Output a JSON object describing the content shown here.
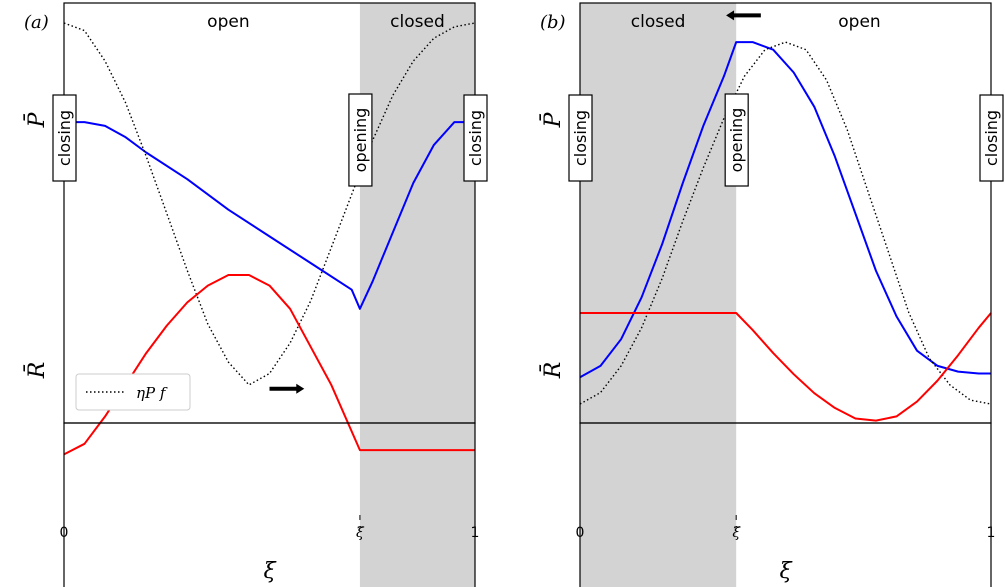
{
  "colors": {
    "pressure": "#0000ff",
    "reference": "#000000",
    "resistance": "#ff0000",
    "closed_shade": "#d3d3d3"
  },
  "chart_data": [
    {
      "type": "line",
      "panel_label": "(a)",
      "xlabel": "ξ",
      "xlim": [
        0,
        1
      ],
      "x_ticks": [
        {
          "value": 0,
          "label": "0"
        },
        {
          "value": 0.72,
          "label": "ξ̃"
        },
        {
          "value": 1,
          "label": "1"
        }
      ],
      "closed_interval": [
        0.72,
        1.0
      ],
      "region_labels": [
        {
          "text": "open",
          "x": 0.4
        },
        {
          "text": "closed",
          "x": 0.86
        }
      ],
      "event_labels": [
        {
          "text": "closing",
          "x": 0.0
        },
        {
          "text": "opening",
          "x": 0.72
        },
        {
          "text": "closing",
          "x": 1.0
        }
      ],
      "legend": {
        "label": "ηP f",
        "position": "lower-left"
      },
      "pressure_panel": {
        "ylabel": "P̄",
        "ylim": [
          0,
          1
        ],
        "series": [
          {
            "name": "P̄",
            "color": "#0000ff",
            "style": "solid",
            "x": [
              0,
              0.05,
              0.1,
              0.15,
              0.2,
              0.3,
              0.4,
              0.5,
              0.6,
              0.7,
              0.72,
              0.75,
              0.8,
              0.85,
              0.9,
              0.95,
              1.0
            ],
            "y": [
              0.74,
              0.74,
              0.73,
              0.7,
              0.66,
              0.59,
              0.51,
              0.44,
              0.37,
              0.3,
              0.25,
              0.32,
              0.45,
              0.58,
              0.68,
              0.74,
              0.74
            ]
          },
          {
            "name": "ηP f",
            "color": "#000000",
            "style": "dotted",
            "x": [
              0,
              0.05,
              0.1,
              0.15,
              0.2,
              0.25,
              0.3,
              0.35,
              0.4,
              0.45,
              0.5,
              0.55,
              0.6,
              0.65,
              0.7,
              0.75,
              0.8,
              0.85,
              0.9,
              0.95,
              1.0
            ],
            "y": [
              1.0,
              0.98,
              0.9,
              0.79,
              0.65,
              0.5,
              0.35,
              0.21,
              0.11,
              0.05,
              0.08,
              0.16,
              0.27,
              0.41,
              0.55,
              0.69,
              0.81,
              0.9,
              0.96,
              0.99,
              1.0
            ]
          }
        ],
        "arrow": {
          "x_from": 0.5,
          "x_to": 0.57,
          "y": 0.04,
          "direction": "right"
        }
      },
      "resistance_panel": {
        "ylabel": "R̄",
        "ylim": [
          0,
          1
        ],
        "series": [
          {
            "name": "R̄",
            "color": "#ff0000",
            "style": "solid",
            "x": [
              0,
              0.05,
              0.1,
              0.15,
              0.2,
              0.25,
              0.3,
              0.35,
              0.4,
              0.45,
              0.5,
              0.55,
              0.6,
              0.65,
              0.72,
              0.75,
              0.8,
              0.85,
              0.9,
              0.95,
              1.0
            ],
            "y": [
              0.15,
              0.2,
              0.33,
              0.48,
              0.63,
              0.76,
              0.87,
              0.95,
              1.0,
              1.0,
              0.95,
              0.84,
              0.66,
              0.48,
              0.17,
              0.17,
              0.17,
              0.17,
              0.17,
              0.17,
              0.17
            ]
          }
        ]
      }
    },
    {
      "type": "line",
      "panel_label": "(b)",
      "xlabel": "ξ",
      "xlim": [
        0,
        1
      ],
      "x_ticks": [
        {
          "value": 0,
          "label": "0"
        },
        {
          "value": 0.38,
          "label": "ξ̃"
        },
        {
          "value": 1,
          "label": "1"
        }
      ],
      "closed_interval": [
        0.0,
        0.38
      ],
      "region_labels": [
        {
          "text": "closed",
          "x": 0.19
        },
        {
          "text": "open",
          "x": 0.68
        }
      ],
      "event_labels": [
        {
          "text": "closing",
          "x": 0.0
        },
        {
          "text": "opening",
          "x": 0.38
        },
        {
          "text": "closing",
          "x": 1.0
        }
      ],
      "pressure_panel": {
        "ylabel": "P̄",
        "ylim": [
          0,
          1
        ],
        "series": [
          {
            "name": "P̄",
            "color": "#0000ff",
            "style": "solid",
            "x": [
              0,
              0.05,
              0.1,
              0.15,
              0.2,
              0.25,
              0.3,
              0.35,
              0.38,
              0.42,
              0.47,
              0.52,
              0.57,
              0.62,
              0.67,
              0.72,
              0.77,
              0.82,
              0.87,
              0.92,
              0.97,
              1.0
            ],
            "y": [
              0.07,
              0.1,
              0.17,
              0.28,
              0.42,
              0.58,
              0.73,
              0.86,
              0.95,
              0.95,
              0.93,
              0.87,
              0.78,
              0.65,
              0.5,
              0.35,
              0.23,
              0.14,
              0.1,
              0.085,
              0.08,
              0.08
            ]
          },
          {
            "name": "ηP f",
            "color": "#000000",
            "style": "dotted",
            "x": [
              0,
              0.05,
              0.1,
              0.15,
              0.2,
              0.25,
              0.3,
              0.35,
              0.4,
              0.45,
              0.5,
              0.55,
              0.6,
              0.65,
              0.7,
              0.75,
              0.8,
              0.85,
              0.9,
              0.95,
              1.0
            ],
            "y": [
              0.0,
              0.03,
              0.1,
              0.2,
              0.33,
              0.48,
              0.62,
              0.75,
              0.86,
              0.93,
              0.95,
              0.93,
              0.85,
              0.72,
              0.56,
              0.4,
              0.24,
              0.12,
              0.05,
              0.01,
              0.0
            ]
          }
        ],
        "arrow": {
          "x_from": 0.44,
          "x_to": 0.37,
          "y": 1.02,
          "direction": "left"
        }
      },
      "resistance_panel": {
        "ylabel": "R̄",
        "ylim": [
          0,
          1
        ],
        "series": [
          {
            "name": "R̄",
            "color": "#ff0000",
            "style": "solid",
            "x": [
              0,
              0.1,
              0.2,
              0.3,
              0.38,
              0.42,
              0.47,
              0.52,
              0.57,
              0.62,
              0.67,
              0.72,
              0.77,
              0.82,
              0.87,
              0.92,
              0.97,
              1.0
            ],
            "y": [
              0.82,
              0.82,
              0.82,
              0.82,
              0.82,
              0.74,
              0.63,
              0.53,
              0.44,
              0.37,
              0.32,
              0.31,
              0.33,
              0.4,
              0.5,
              0.62,
              0.75,
              0.82
            ]
          }
        ]
      }
    }
  ]
}
